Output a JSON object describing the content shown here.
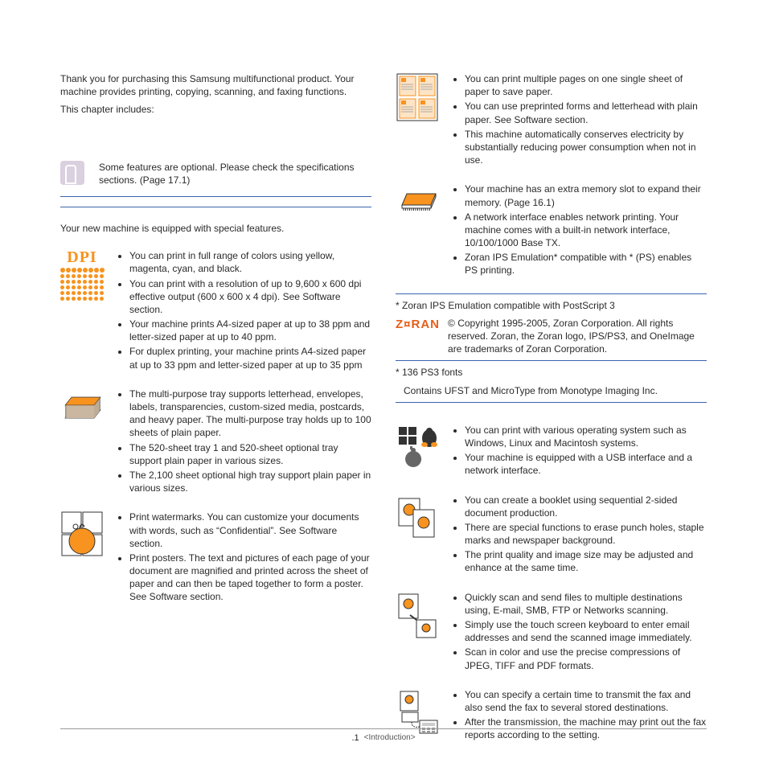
{
  "intro": {
    "p1": "Thank you for purchasing this Samsung multifunctional product. Your machine provides printing, copying, scanning, and faxing functions.",
    "p2": "This chapter includes:"
  },
  "note": "Some features are optional. Please check the specifications sections. (Page 17.1)",
  "features_intro": "Your new machine is equipped with special features.",
  "left_features": [
    {
      "icon": "dpi",
      "items": [
        "You can print in full range of colors using yellow, magenta, cyan, and black.",
        "You can print with a resolution of up to 9,600 x 600 dpi effective output (600 x 600 x 4 dpi). See Software section.",
        "Your machine prints A4-sized paper at up to 38 ppm and letter-sized paper at up to 40 ppm.",
        "For duplex printing, your machine prints A4-sized paper at up to 33 ppm and letter-sized paper at up to 35 ppm"
      ]
    },
    {
      "icon": "stack",
      "items": [
        "The multi-purpose tray supports letterhead, envelopes, labels, transparencies, custom-sized media, postcards, and heavy paper. The multi-purpose tray holds up to 100 sheets of plain paper.",
        "The 520-sheet tray 1 and 520-sheet optional tray support plain paper in various sizes.",
        "The 2,100 sheet optional high tray support plain paper in various sizes."
      ]
    },
    {
      "icon": "poster",
      "items": [
        "Print watermarks. You can customize your documents with words, such as “Confidential”. See Software section.",
        "Print posters. The text and pictures of each page of your document are magnified and printed across the sheet of paper and can then be taped together to form a poster. See Software section."
      ]
    }
  ],
  "right_top": [
    {
      "icon": "nup",
      "items": [
        "You can print multiple pages on one single sheet of paper to save paper.",
        "You can use preprinted forms and letterhead with plain paper. See Software section.",
        "This machine automatically conserves electricity by substantially reducing power consumption when not in use."
      ]
    },
    {
      "icon": "chip",
      "items": [
        "Your machine has an extra memory slot to expand their memory. (Page 16.1)",
        "A network interface enables network printing. Your machine comes with a built-in network interface, 10/100/1000 Base TX.",
        "Zoran IPS Emulation* compatible with                            * (PS) enables PS printing."
      ]
    }
  ],
  "zoran_header": "* Zoran IPS Emulation compatible with PostScript 3",
  "zoran_text": "© Copyright 1995-2005, Zoran Corporation. All rights reserved. Zoran, the Zoran logo, IPS/PS3, and OneImage are trademarks of Zoran Corporation.",
  "zoran_brand": "Z¤RAN",
  "fonts_line1": "* 136 PS3 fonts",
  "fonts_line2": "Contains UFST and MicroType from Monotype Imaging Inc.",
  "right_bottom": [
    {
      "icon": "os",
      "items": [
        "You can print with various operating system such as Windows, Linux and Macintosh systems.",
        "Your machine is equipped with a USB interface and a network interface."
      ]
    },
    {
      "icon": "booklet",
      "items": [
        "You can create a booklet using sequential 2-sided document production.",
        "There are special functions to erase punch holes, staple marks and newspaper background.",
        "The print quality and image size may be adjusted and enhance at the same time."
      ]
    },
    {
      "icon": "scan",
      "items": [
        "Quickly scan and send files to multiple destinations using, E-mail, SMB, FTP or Networks scanning.",
        "Simply use the touch screen keyboard to enter email addresses and send the scanned image immediately.",
        "Scan in color and use the precise compressions of JPEG, TIFF and PDF formats."
      ]
    },
    {
      "icon": "fax",
      "items": [
        "You can specify a certain time to transmit the fax and also send the fax to several stored destinations.",
        "After the transmission, the machine may print out the fax reports according to the setting."
      ]
    }
  ],
  "footer": {
    "page": ".1",
    "section": "<Introduction>"
  },
  "colors": {
    "accent": "#f7931e",
    "blue": "#3a63b0"
  }
}
